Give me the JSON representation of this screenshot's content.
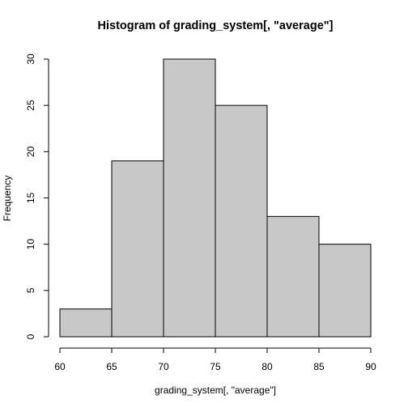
{
  "chart_data": {
    "type": "bar",
    "title": "Histogram of grading_system[, \"average\"]",
    "xlabel": "grading_system[, \"average\"]",
    "ylabel": "Frequency",
    "bins": [
      {
        "from": 60,
        "to": 65,
        "count": 3
      },
      {
        "from": 65,
        "to": 70,
        "count": 19
      },
      {
        "from": 70,
        "to": 75,
        "count": 30
      },
      {
        "from": 75,
        "to": 80,
        "count": 25
      },
      {
        "from": 80,
        "to": 85,
        "count": 13
      },
      {
        "from": 85,
        "to": 90,
        "count": 10
      }
    ],
    "xlim": [
      60,
      90
    ],
    "ylim": [
      0,
      30
    ],
    "xticks": [
      60,
      65,
      70,
      75,
      80,
      85,
      90
    ],
    "yticks": [
      0,
      5,
      10,
      15,
      20,
      25,
      30
    ],
    "bar_color": "#c8c8c8",
    "grid": false,
    "legend": "none"
  }
}
